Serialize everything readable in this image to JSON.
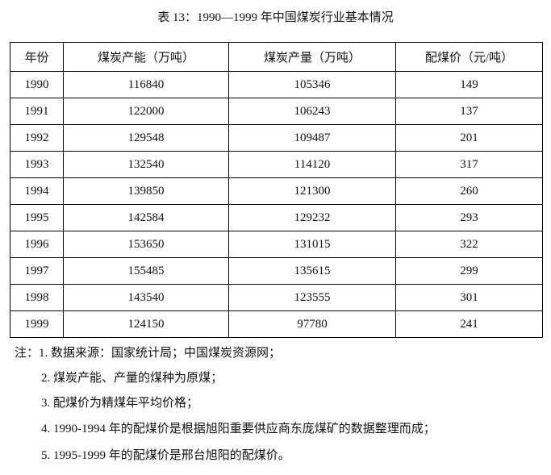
{
  "title": "表 13：1990—1999 年中国煤炭行业基本情况",
  "table": {
    "header": [
      "年份",
      "煤炭产能（万吨）",
      "煤炭产量（万吨）",
      "配煤价（元/吨）"
    ],
    "rows": [
      [
        1990,
        116840,
        105346,
        149
      ],
      [
        1991,
        122000,
        106243,
        137
      ],
      [
        1992,
        129548,
        109487,
        201
      ],
      [
        1993,
        132540,
        114120,
        317
      ],
      [
        1994,
        139850,
        121300,
        260
      ],
      [
        1995,
        142584,
        129232,
        293
      ],
      [
        1996,
        153650,
        131015,
        322
      ],
      [
        1997,
        155485,
        135615,
        299
      ],
      [
        1998,
        143540,
        123555,
        301
      ],
      [
        1999,
        124150,
        97780,
        241
      ]
    ]
  },
  "notes": {
    "label": "注：",
    "items": [
      "1. 数据来源：国家统计局；中国煤炭资源网；",
      "2. 煤炭产能、产量的煤种为原煤；",
      "3. 配煤价为精煤年平均价格；",
      "4. 1990-1994 年的配煤价是根据旭阳重要供应商东庞煤矿的数据整理而成；",
      "5. 1995-1999 年的配煤价是邢台旭阳的配煤价。"
    ]
  }
}
